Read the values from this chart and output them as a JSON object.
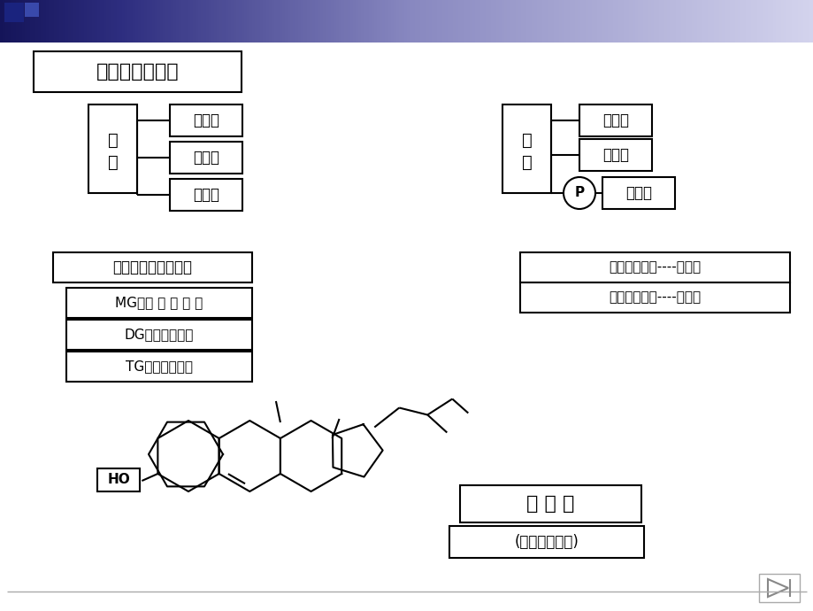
{
  "title": "脂类的结构通式",
  "white": "#ffffff",
  "black": "#000000",
  "left_diagram": {
    "boxes": [
      "脂肪酸",
      "脂肪酸",
      "脂肪酸"
    ],
    "label": "脂肪（三酯酰甘油）",
    "sub_labels": [
      "MG：一 酯 酰 甘 油",
      "DG：二酯酰甘油",
      "TG：三酯酰甘油"
    ]
  },
  "right_diagram": {
    "boxes": [
      "脂肪酸",
      "脂肪酸"
    ],
    "circle_text": "P",
    "box_right": "有机碱",
    "sub_labels": [
      "有机碱：胆胺----脑磷脂",
      "有机碱：胆碱----卵磷脂"
    ]
  },
  "cholesterol_label": "胆 固 醇",
  "cholesterol_sub": "(环戊烷高氢菲)",
  "ho_label": "HO"
}
